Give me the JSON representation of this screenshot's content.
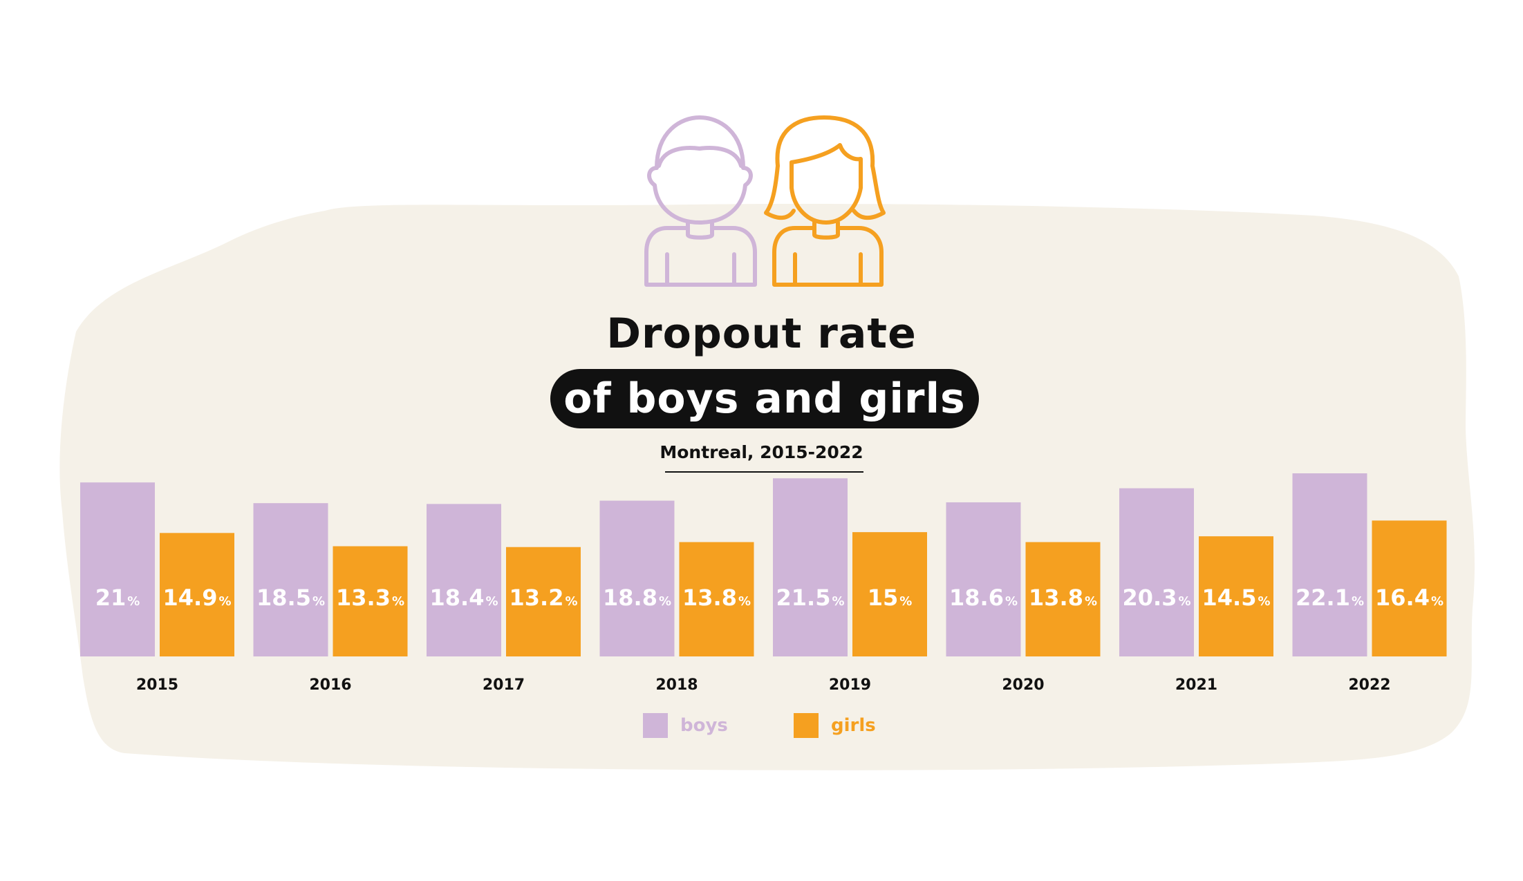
{
  "title": {
    "line1": "Dropout rate",
    "line2": "of boys and girls",
    "subtitle": "Montreal, 2015-2022"
  },
  "icons": [
    "boy-icon",
    "girl-icon"
  ],
  "colors": {
    "boys": "#cfb5d8",
    "girls": "#f5a020",
    "background_blob": "#f5f1e8",
    "text": "#111111"
  },
  "legend": {
    "boys_label": "boys",
    "girls_label": "girls"
  },
  "chart_data": {
    "type": "bar",
    "categories": [
      "2015",
      "2016",
      "2017",
      "2018",
      "2019",
      "2020",
      "2021",
      "2022"
    ],
    "series": [
      {
        "name": "boys",
        "values": [
          21,
          18.5,
          18.4,
          18.8,
          21.5,
          18.6,
          20.3,
          22.1
        ]
      },
      {
        "name": "girls",
        "values": [
          14.9,
          13.3,
          13.2,
          13.8,
          15,
          13.8,
          14.5,
          16.4
        ]
      }
    ],
    "unit": "%",
    "ylim": [
      0,
      22.1
    ],
    "grid": false,
    "legend_position": "bottom-center"
  }
}
